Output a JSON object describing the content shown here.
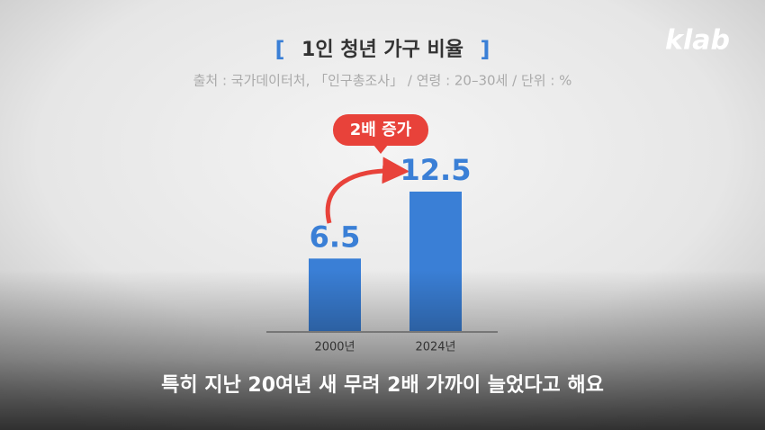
{
  "chart_data": {
    "type": "bar",
    "title_open": "[",
    "title": "1인 청년 가구 비율",
    "title_close": "]",
    "subtitle": "출처 : 국가데이터처, 「인구총조사」 / 연령 : 20–30세 / 단위 : %",
    "annotation": "2배 증가",
    "categories": [
      "2000년",
      "2024년"
    ],
    "values": [
      6.5,
      12.5
    ],
    "color": "#3a7fd6"
  },
  "caption": "특히 지난 20여년 새 무려 2배 가까이 늘었다고 해요",
  "logo": "klab"
}
